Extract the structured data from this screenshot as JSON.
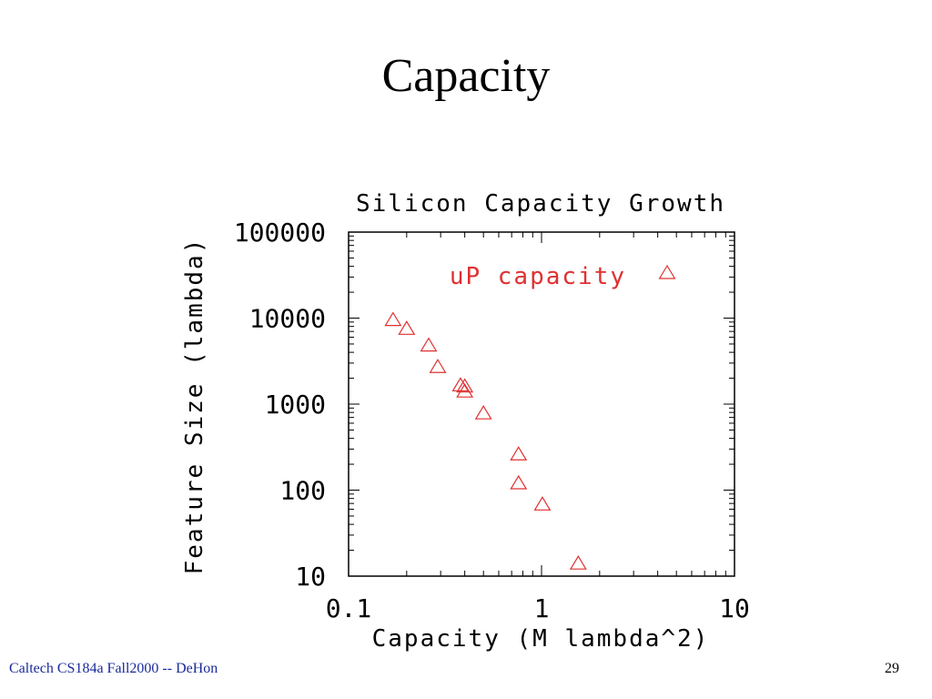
{
  "slide": {
    "title": "Capacity",
    "footer": "Caltech CS184a Fall2000 -- DeHon",
    "page_number": "29"
  },
  "chart_data": {
    "type": "scatter",
    "title": "Silicon Capacity Growth",
    "xlabel": "Capacity (M lambda^2)",
    "ylabel": "Feature Size (lambda)",
    "x_scale": "log",
    "y_scale": "log",
    "xlim": [
      0.1,
      10
    ],
    "ylim": [
      10,
      100000
    ],
    "x_ticks": [
      {
        "value": 0.1,
        "label": "0.1"
      },
      {
        "value": 1,
        "label": "1"
      },
      {
        "value": 10,
        "label": "10"
      }
    ],
    "y_ticks": [
      {
        "value": 10,
        "label": "10"
      },
      {
        "value": 100,
        "label": "100"
      },
      {
        "value": 1000,
        "label": "1000"
      },
      {
        "value": 10000,
        "label": "10000"
      },
      {
        "value": 100000,
        "label": "100000"
      }
    ],
    "grid": false,
    "legend": "top-right",
    "marker": "triangle",
    "series": [
      {
        "name": "uP capacity",
        "color": "#e03030",
        "points": [
          {
            "x": 0.17,
            "y": 9500
          },
          {
            "x": 0.2,
            "y": 7500
          },
          {
            "x": 0.26,
            "y": 4800
          },
          {
            "x": 0.29,
            "y": 2700
          },
          {
            "x": 0.38,
            "y": 1650
          },
          {
            "x": 0.4,
            "y": 1600
          },
          {
            "x": 0.4,
            "y": 1400
          },
          {
            "x": 0.5,
            "y": 780
          },
          {
            "x": 0.76,
            "y": 260
          },
          {
            "x": 0.76,
            "y": 120
          },
          {
            "x": 1.01,
            "y": 68
          },
          {
            "x": 1.55,
            "y": 14
          }
        ]
      }
    ]
  }
}
